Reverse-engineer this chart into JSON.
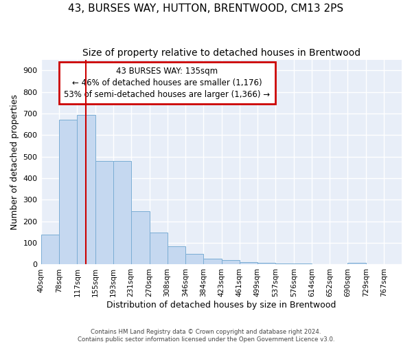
{
  "title": "43, BURSES WAY, HUTTON, BRENTWOOD, CM13 2PS",
  "subtitle": "Size of property relative to detached houses in Brentwood",
  "xlabel": "Distribution of detached houses by size in Brentwood",
  "ylabel": "Number of detached properties",
  "bar_color": "#c5d8f0",
  "bar_edge_color": "#7aadd4",
  "bg_color": "#e8eef8",
  "grid_color": "#ffffff",
  "bin_edges": [
    40,
    78,
    117,
    155,
    193,
    231,
    270,
    308,
    346,
    384,
    423,
    461,
    499,
    537,
    576,
    614,
    652,
    690,
    729,
    767,
    805
  ],
  "bar_heights": [
    140,
    670,
    695,
    480,
    480,
    248,
    148,
    83,
    50,
    28,
    20,
    10,
    8,
    5,
    5,
    3,
    0,
    8,
    0,
    3
  ],
  "vline_x": 135,
  "vline_color": "#cc0000",
  "annotation_text": "43 BURSES WAY: 135sqm\n← 46% of detached houses are smaller (1,176)\n53% of semi-detached houses are larger (1,366) →",
  "annotation_box_color": "#cc0000",
  "annotation_text_color": "#000000",
  "ylim": [
    0,
    950
  ],
  "yticks": [
    0,
    100,
    200,
    300,
    400,
    500,
    600,
    700,
    800,
    900
  ],
  "footer_line1": "Contains HM Land Registry data © Crown copyright and database right 2024.",
  "footer_line2": "Contains public sector information licensed under the Open Government Licence v3.0.",
  "title_fontsize": 11,
  "subtitle_fontsize": 10,
  "tick_label_fontsize": 7.5,
  "ylabel_fontsize": 9,
  "xlabel_fontsize": 9,
  "annotation_fontsize": 8.5
}
